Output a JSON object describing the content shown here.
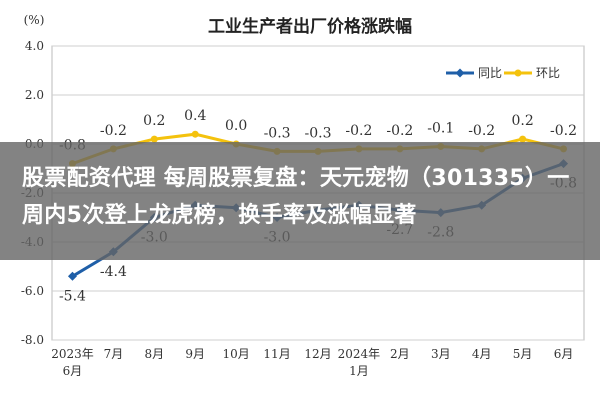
{
  "headline": "股票配资代理 每周股票复盘：天元宠物（301335）一周内5次登上龙虎榜，换手率及涨幅显著",
  "chart_data": {
    "type": "line",
    "title": "工业生产者出厂价格涨跌幅",
    "yunit": "(%)",
    "ylim": [
      -8.0,
      4.0
    ],
    "yticks": [
      "4.0",
      "2.0",
      "0.0",
      "-2.0",
      "-4.0",
      "-6.0",
      "-8.0"
    ],
    "grid": true,
    "legend_position": "top-right",
    "categories": [
      [
        "2023年",
        "6月"
      ],
      [
        "7月"
      ],
      [
        "8月"
      ],
      [
        "9月"
      ],
      [
        "10月"
      ],
      [
        "11月"
      ],
      [
        "12月"
      ],
      [
        "2024年",
        "1月"
      ],
      [
        "2月"
      ],
      [
        "3月"
      ],
      [
        "4月"
      ],
      [
        "5月"
      ],
      [
        "6月"
      ]
    ],
    "series": [
      {
        "name": "同比",
        "color": "#1f5fa8",
        "values": [
          -5.4,
          -4.4,
          -3.0,
          -2.5,
          -2.6,
          -3.0,
          -2.7,
          -2.5,
          -2.7,
          -2.8,
          -2.5,
          -1.4,
          -0.8
        ],
        "labels": [
          "-5.4",
          "-4.4",
          "-3.0",
          "",
          "",
          "-3.0",
          "",
          "",
          "-2.7",
          "-2.8",
          "",
          "",
          "-0.8"
        ]
      },
      {
        "name": "环比",
        "color": "#f4c20d",
        "values": [
          -0.8,
          -0.2,
          0.2,
          0.4,
          0.0,
          -0.3,
          -0.3,
          -0.2,
          -0.2,
          -0.1,
          -0.2,
          0.2,
          -0.2
        ],
        "labels": [
          "-0.8",
          "-0.2",
          "0.2",
          "0.4",
          "0.0",
          "-0.3",
          "-0.3",
          "-0.2",
          "-0.2",
          "-0.1",
          "-0.2",
          "0.2",
          "-0.2"
        ]
      }
    ]
  }
}
